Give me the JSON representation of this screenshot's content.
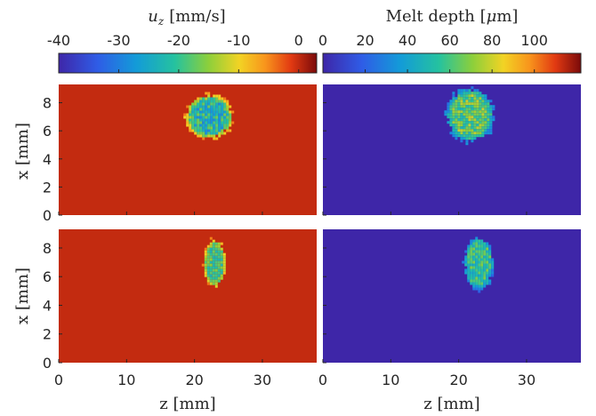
{
  "chart_data": {
    "type": "heatmap",
    "colormap": "jet",
    "panels": [
      {
        "id": "uz-top",
        "quantity": "u_z",
        "background_value": 0,
        "spot": {
          "center_z": 22,
          "center_x": 7.1,
          "radius_z": 3.5,
          "radius_x": 1.6
        },
        "spot_value_range": [
          -38,
          -12
        ]
      },
      {
        "id": "melt-top",
        "quantity": "melt_depth",
        "background_value": 0,
        "spot": {
          "center_z": 21.5,
          "center_x": 7.2,
          "radius_z": 3.5,
          "radius_x": 1.9
        },
        "spot_value_range": [
          35,
          80
        ]
      },
      {
        "id": "uz-bottom",
        "quantity": "u_z",
        "background_value": 0,
        "spot": {
          "center_z": 22.8,
          "center_x": 7.0,
          "radius_z": 1.6,
          "radius_x": 1.7
        },
        "spot_value_range": [
          -30,
          -12
        ]
      },
      {
        "id": "melt-bottom",
        "quantity": "melt_depth",
        "background_value": 0,
        "spot": {
          "center_z": 22.8,
          "center_x": 7.0,
          "radius_z": 2.2,
          "radius_x": 1.9
        },
        "spot_value_range": [
          30,
          70
        ]
      }
    ],
    "xlim": [
      0,
      38
    ],
    "ylim": [
      0,
      9.3
    ],
    "xticks": [
      "0",
      "10",
      "20",
      "30"
    ],
    "xtick_values": [
      0,
      10,
      20,
      30
    ],
    "yticks": [
      "0",
      "2",
      "4",
      "6",
      "8"
    ],
    "ytick_values": [
      0,
      2,
      4,
      6,
      8
    ],
    "xlabel": "z [mm]",
    "ylabel": "x [mm]",
    "colorbars": [
      {
        "id": "uz",
        "title_symbol": "u",
        "title_subscript": "z",
        "title_units": "[mm/s]",
        "range": [
          -40,
          3
        ],
        "ticks": [
          "-40",
          "-30",
          "-20",
          "-10",
          "0"
        ],
        "tick_values": [
          -40,
          -30,
          -20,
          -10,
          0
        ]
      },
      {
        "id": "melt",
        "title_prefix": "Melt depth [",
        "title_greek": "μ",
        "title_suffix": "m]",
        "range": [
          0,
          122
        ],
        "ticks": [
          "0",
          "20",
          "40",
          "60",
          "80",
          "100"
        ],
        "tick_values": [
          0,
          20,
          40,
          60,
          80,
          100
        ]
      }
    ]
  }
}
